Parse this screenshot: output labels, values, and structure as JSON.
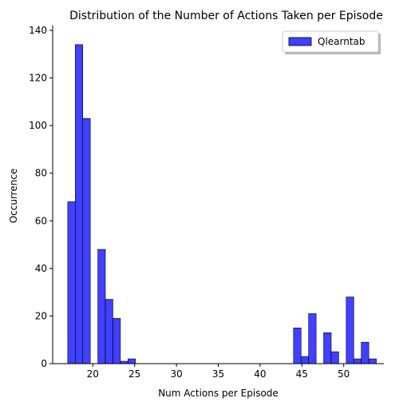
{
  "chart_data": {
    "type": "bar",
    "title": "Distribution of the Number of Actions Taken per Episode",
    "xlabel": "Num Actions per Episode",
    "ylabel": "Occurrence",
    "xlim": [
      15.2,
      54.8
    ],
    "ylim": [
      0,
      141
    ],
    "xticks": [
      20,
      25,
      30,
      35,
      40,
      45,
      50
    ],
    "yticks": [
      0,
      20,
      40,
      60,
      80,
      100,
      120,
      140
    ],
    "bin_width": 0.9,
    "grid": false,
    "legend_position": "top-right",
    "colors": {
      "bar_fill": "#0000ff",
      "bar_opacity": 0.75,
      "bar_edge": "#000000"
    },
    "series": [
      {
        "name": "Qlearntab",
        "bins": [
          {
            "x": 17.0,
            "value": 68
          },
          {
            "x": 17.9,
            "value": 134
          },
          {
            "x": 18.8,
            "value": 103
          },
          {
            "x": 20.6,
            "value": 48
          },
          {
            "x": 21.5,
            "value": 27
          },
          {
            "x": 22.4,
            "value": 19
          },
          {
            "x": 23.3,
            "value": 1
          },
          {
            "x": 24.2,
            "value": 2
          },
          {
            "x": 44.0,
            "value": 15
          },
          {
            "x": 44.9,
            "value": 3
          },
          {
            "x": 45.8,
            "value": 21
          },
          {
            "x": 47.6,
            "value": 13
          },
          {
            "x": 48.5,
            "value": 5
          },
          {
            "x": 50.3,
            "value": 28
          },
          {
            "x": 51.2,
            "value": 2
          },
          {
            "x": 52.1,
            "value": 9
          },
          {
            "x": 53.0,
            "value": 2
          }
        ]
      }
    ]
  }
}
